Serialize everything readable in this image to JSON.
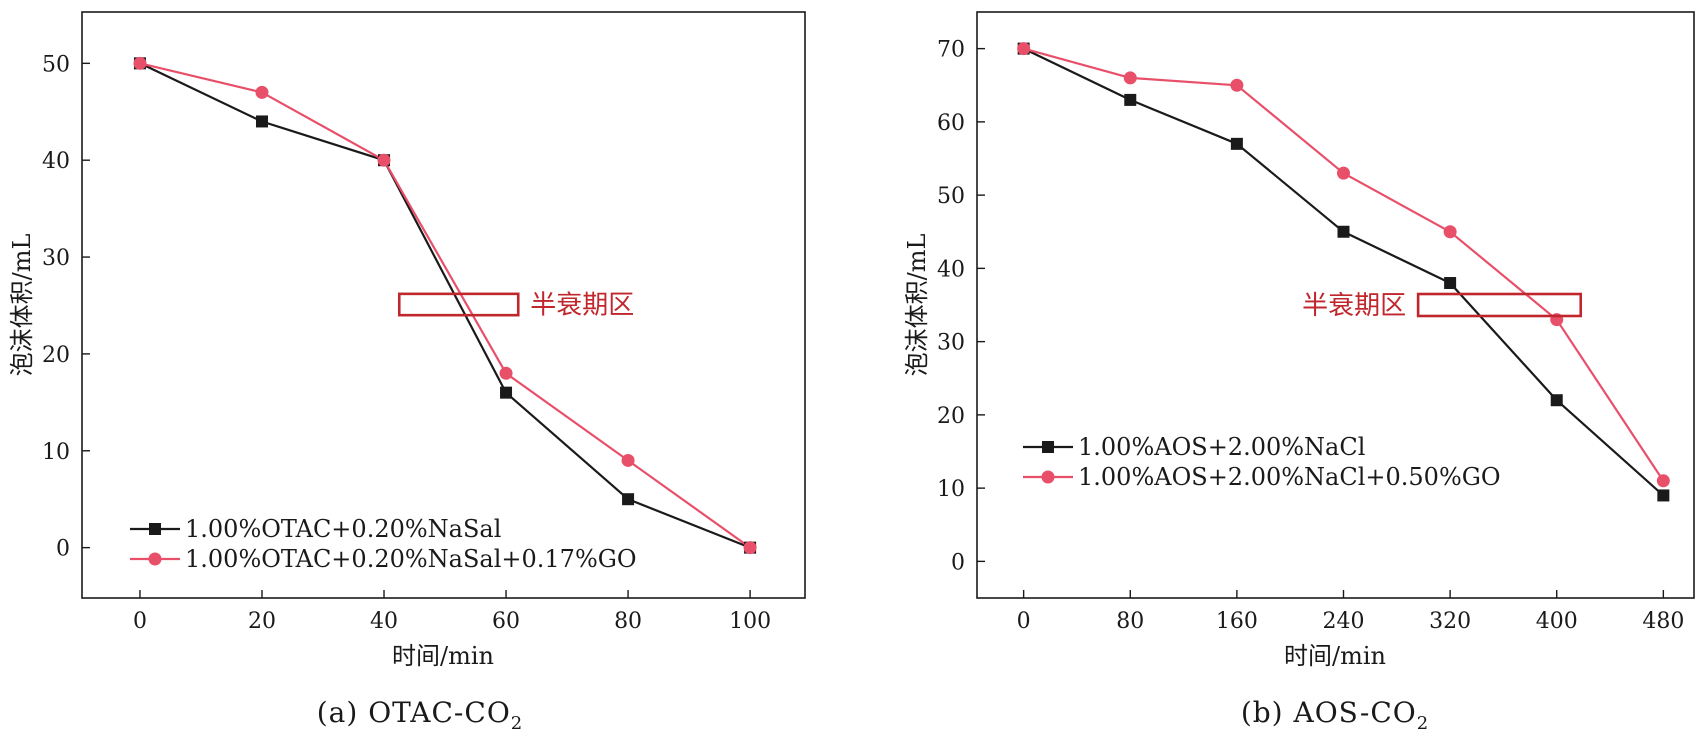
{
  "colors": {
    "black_series": "#1a1a1a",
    "red_series": "#e8506a",
    "annotation": "#c0272d"
  },
  "chart_data": [
    {
      "id": "a",
      "type": "line",
      "caption": "(a) OTAC-CO",
      "caption_sub": "2",
      "xlabel": "时间/min",
      "ylabel": "泡沫体积/mL",
      "x": [
        0,
        20,
        40,
        60,
        80,
        100
      ],
      "xticks": [
        0,
        20,
        40,
        60,
        80,
        100
      ],
      "yticks": [
        0,
        10,
        20,
        30,
        40,
        50
      ],
      "xlim": [
        -9.5,
        109
      ],
      "ylim": [
        -5.2,
        55.3
      ],
      "series": [
        {
          "name": "1.00%OTAC+0.20%NaSal",
          "marker": "square",
          "color": "#1a1a1a",
          "values": [
            50,
            44,
            40,
            16,
            5,
            0
          ]
        },
        {
          "name": "1.00%OTAC+0.20%NaSal+0.17%GO",
          "marker": "circle",
          "color": "#e8506a",
          "values": [
            50,
            47,
            40,
            18,
            9,
            0
          ]
        }
      ],
      "legend_position": "bottom-left",
      "annotation": {
        "label": "半衰期区",
        "box_x": [
          42.5,
          62
        ],
        "box_y": [
          24,
          26.2
        ]
      }
    },
    {
      "id": "b",
      "type": "line",
      "caption": "(b) AOS-CO",
      "caption_sub": "2",
      "xlabel": "时间/min",
      "ylabel": "泡沫体积/mL",
      "x": [
        0,
        80,
        160,
        240,
        320,
        400,
        480
      ],
      "xticks": [
        0,
        80,
        160,
        240,
        320,
        400,
        480
      ],
      "yticks": [
        0,
        10,
        20,
        30,
        40,
        50,
        60,
        70
      ],
      "xlim": [
        -35,
        503
      ],
      "ylim": [
        -5,
        75
      ],
      "series": [
        {
          "name": "1.00%AOS+2.00%NaCl",
          "marker": "square",
          "color": "#1a1a1a",
          "values": [
            70,
            63,
            57,
            45,
            38,
            22,
            9
          ]
        },
        {
          "name": "1.00%AOS+2.00%NaCl+0.50%GO",
          "marker": "circle",
          "color": "#e8506a",
          "values": [
            70,
            66,
            65,
            53,
            45,
            33,
            11
          ]
        }
      ],
      "legend_position": "bottom-left",
      "annotation": {
        "label": "半衰期区",
        "box_x": [
          296,
          418
        ],
        "box_y": [
          33.5,
          36.5
        ]
      }
    }
  ]
}
